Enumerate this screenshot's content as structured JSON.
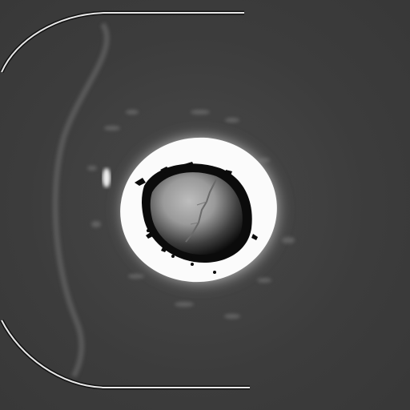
{
  "image": {
    "kind": "grayscale medical scan (CT/MRI style) showing a bright ring-shaped region with a dark center",
    "colors": {
      "background": "#3a3a3a",
      "ring_bright": "#ffffff",
      "ring_glow": "#d8d8d8",
      "core_dark": "#0d0d0d",
      "core_mid": "#a8a8a8",
      "frame_curve": "#e6e6e6",
      "frame_shadow": "#111111",
      "speckle": "#6a6a6a"
    }
  }
}
